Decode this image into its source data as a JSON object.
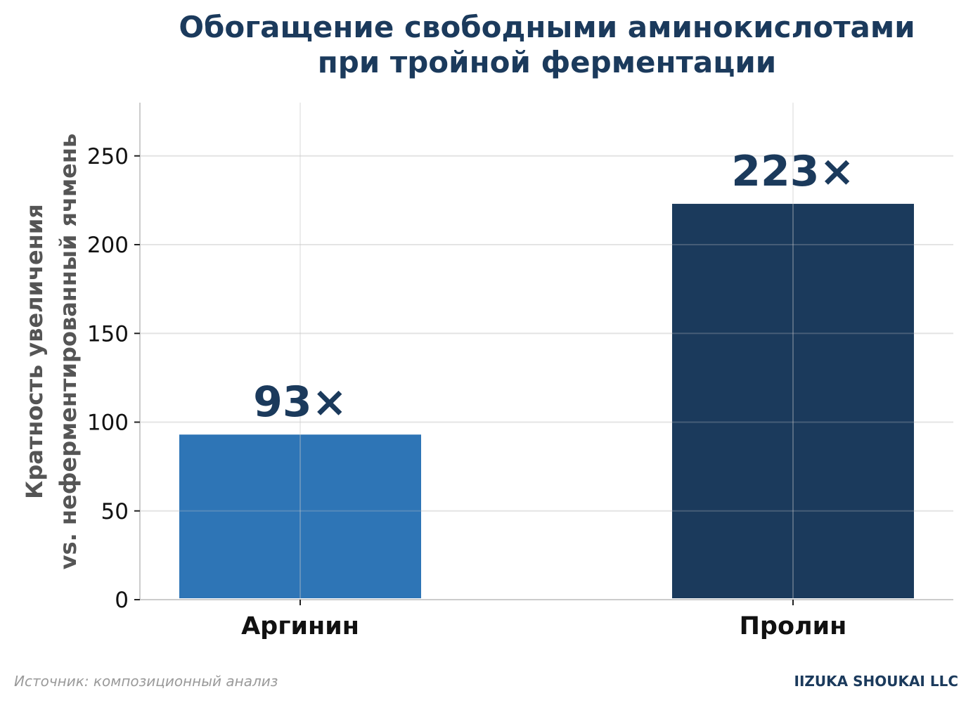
{
  "chart_data": {
    "type": "bar",
    "title_lines": [
      "Обогащение свободными аминокислотами",
      "при тройной ферментации"
    ],
    "ylabel_lines": [
      "Кратность увеличения",
      "vs. неферментированный ячмень"
    ],
    "xlabel": "",
    "categories": [
      "Аргинин",
      "Пролин"
    ],
    "values": [
      93,
      223
    ],
    "data_labels": [
      "93×",
      "223×"
    ],
    "bar_colors": [
      "#2e75b6",
      "#1b3a5c"
    ],
    "ylim": [
      0,
      280
    ],
    "yticks": [
      0,
      50,
      100,
      150,
      200,
      250
    ],
    "grid": true,
    "legend": "none"
  },
  "footer": {
    "source": "Источник: композиционный анализ",
    "brand": "IIZUKA SHOUKAI LLC"
  },
  "colors": {
    "title": "#1b3a5c",
    "data_label": "#1b3a5c",
    "axis_label": "#555555",
    "grid": "#eeeeee",
    "axis": "#cccccc"
  }
}
